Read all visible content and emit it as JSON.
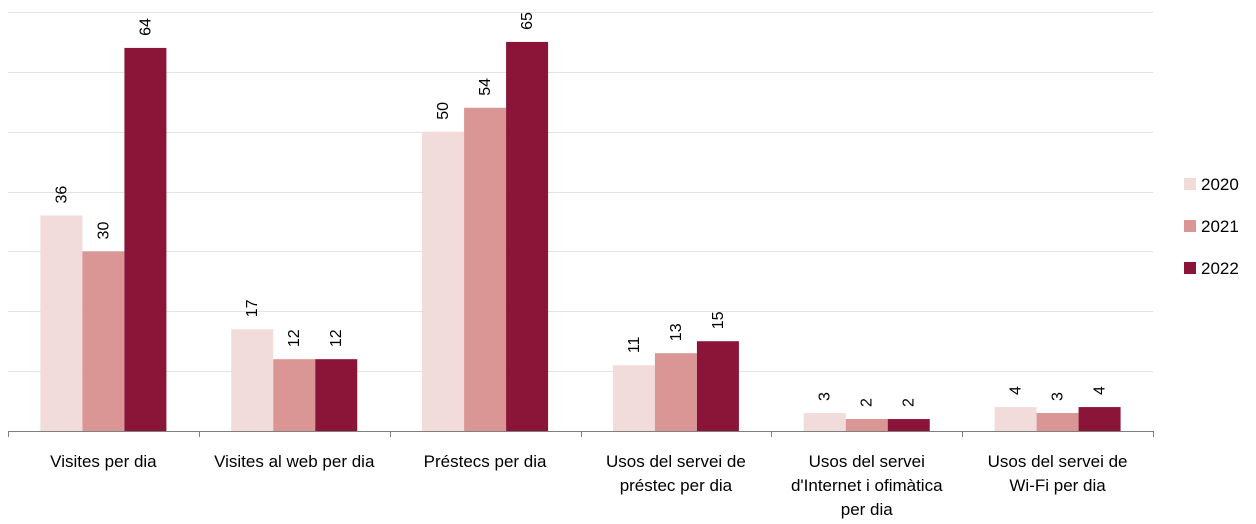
{
  "chart_data": {
    "type": "bar",
    "categories": [
      [
        "Visites per dia"
      ],
      [
        "Visites al web per dia"
      ],
      [
        "Préstecs per dia"
      ],
      [
        "Usos del servei de",
        "préstec per dia"
      ],
      [
        "Usos del servei",
        "d'Internet i ofimàtica",
        "per dia"
      ],
      [
        "Usos del servei de",
        "Wi-Fi per dia"
      ]
    ],
    "series": [
      {
        "name": "2020",
        "color": "#F2DCDB",
        "values": [
          36,
          17,
          50,
          11,
          3,
          4
        ]
      },
      {
        "name": "2021",
        "color": "#D99694",
        "values": [
          30,
          12,
          54,
          13,
          2,
          3
        ]
      },
      {
        "name": "2022",
        "color": "#8B1538",
        "values": [
          64,
          12,
          65,
          15,
          2,
          4
        ]
      }
    ],
    "ylim": [
      0,
      70
    ],
    "gridlines": [
      10,
      20,
      30,
      40,
      50,
      60,
      70
    ],
    "grid": true,
    "legend_position": "right",
    "data_labels_rotated": true
  }
}
